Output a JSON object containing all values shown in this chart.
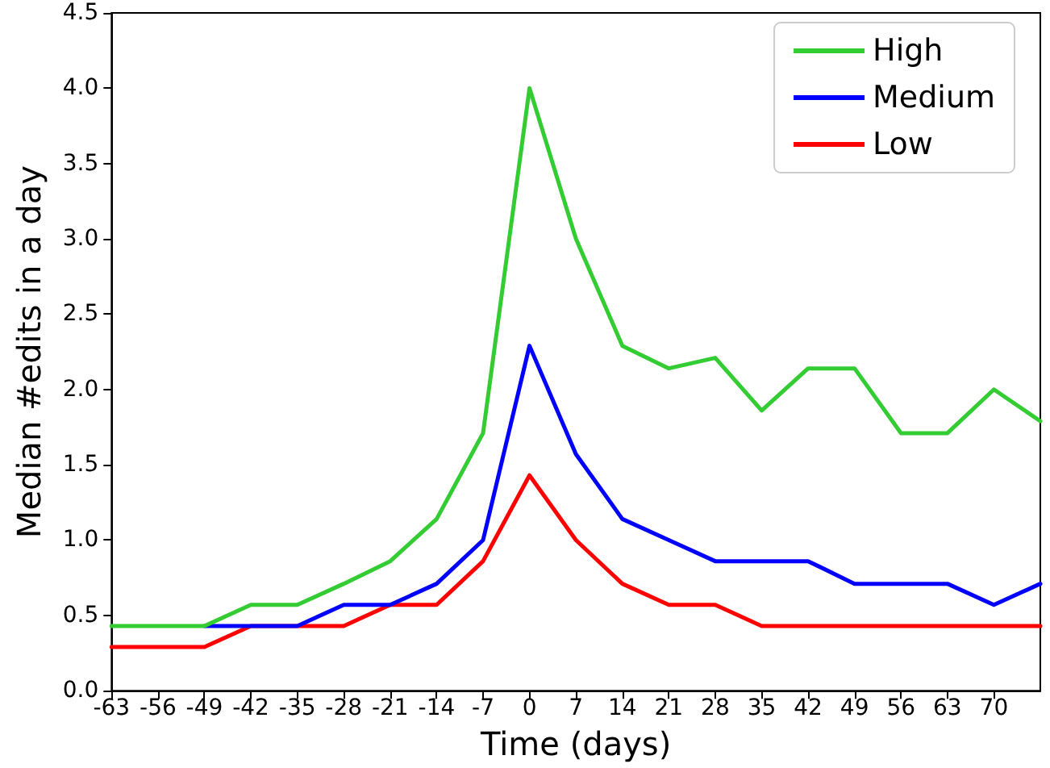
{
  "chart_data": {
    "type": "line",
    "xlabel": "Time (days)",
    "ylabel": "Median #edits in a day",
    "x": [
      -63,
      -56,
      -49,
      -42,
      -35,
      -28,
      -21,
      -14,
      -7,
      0,
      7,
      14,
      21,
      28,
      35,
      42,
      49,
      56,
      63,
      70,
      77
    ],
    "series": [
      {
        "name": "High",
        "color": "#33cc33",
        "values": [
          0.43,
          0.43,
          0.43,
          0.57,
          0.57,
          0.71,
          0.86,
          1.14,
          1.71,
          4.0,
          3.0,
          2.29,
          2.14,
          2.21,
          1.86,
          2.14,
          2.14,
          1.71,
          1.71,
          2.0,
          1.79
        ]
      },
      {
        "name": "Medium",
        "color": "#0000ff",
        "values": [
          null,
          null,
          0.43,
          0.43,
          0.43,
          0.57,
          0.57,
          0.71,
          1.0,
          2.29,
          1.57,
          1.14,
          1.0,
          0.86,
          0.86,
          0.86,
          0.71,
          0.71,
          0.71,
          0.57,
          0.71
        ]
      },
      {
        "name": "Low",
        "color": "#ff0000",
        "values": [
          0.29,
          0.29,
          0.29,
          0.43,
          0.43,
          0.43,
          0.57,
          0.57,
          0.86,
          1.43,
          1.0,
          0.71,
          0.57,
          0.57,
          0.43,
          0.43,
          0.43,
          0.43,
          0.43,
          0.43,
          0.43
        ]
      }
    ],
    "xlim": [
      -63,
      77
    ],
    "xticks": [
      -63,
      -56,
      -49,
      -42,
      -35,
      -28,
      -21,
      -14,
      -7,
      0,
      7,
      14,
      21,
      28,
      35,
      42,
      49,
      56,
      63,
      70
    ],
    "ylim": [
      0,
      4.5
    ],
    "yticks": [
      {
        "value": 0,
        "label": "0.0"
      },
      {
        "value": 0.5,
        "label": "0.5"
      },
      {
        "value": 1,
        "label": "1.0"
      },
      {
        "value": 1.5,
        "label": "1.5"
      },
      {
        "value": 2,
        "label": "2.0"
      },
      {
        "value": 2.5,
        "label": "2.5"
      },
      {
        "value": 3,
        "label": "3.0"
      },
      {
        "value": 3.5,
        "label": "3.5"
      },
      {
        "value": 4,
        "label": "4.0"
      },
      {
        "value": 4.5,
        "label": "4.5"
      }
    ],
    "grid": false,
    "legend": "top right",
    "marker": "none",
    "line_style": "solid"
  }
}
